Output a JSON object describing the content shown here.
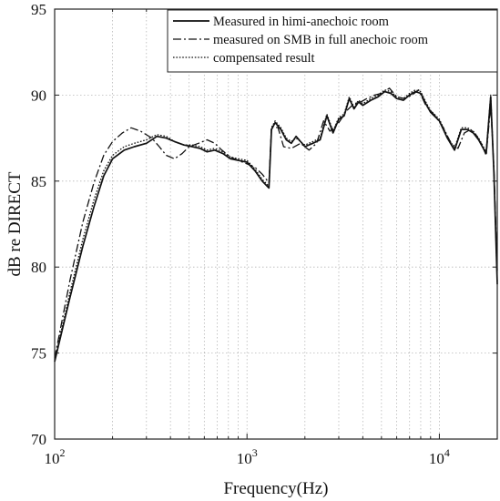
{
  "chart_data": {
    "type": "line",
    "xlabel": "Frequency(Hz)",
    "ylabel": "dB re DIRECT",
    "x_scale": "log",
    "xlim": [
      100,
      20000
    ],
    "ylim": [
      70,
      95
    ],
    "x_ticks": [
      {
        "value": 100,
        "base": "10",
        "exp": "2"
      },
      {
        "value": 1000,
        "base": "10",
        "exp": "3"
      },
      {
        "value": 10000,
        "base": "10",
        "exp": "4"
      }
    ],
    "y_ticks": [
      70,
      75,
      80,
      85,
      90,
      95
    ],
    "grid": "x-major-and-minor, y-major, dotted",
    "legend_position": "top-right",
    "series": [
      {
        "name": "Measured in himi-anechoic room",
        "style": "solid",
        "color": "#111111",
        "points": [
          [
            100,
            74.5
          ],
          [
            120,
            78.2
          ],
          [
            140,
            81.2
          ],
          [
            160,
            83.5
          ],
          [
            180,
            85.3
          ],
          [
            200,
            86.3
          ],
          [
            230,
            86.8
          ],
          [
            260,
            87.0
          ],
          [
            300,
            87.2
          ],
          [
            340,
            87.6
          ],
          [
            380,
            87.5
          ],
          [
            420,
            87.3
          ],
          [
            470,
            87.1
          ],
          [
            520,
            87.0
          ],
          [
            570,
            86.9
          ],
          [
            620,
            86.7
          ],
          [
            680,
            86.8
          ],
          [
            750,
            86.6
          ],
          [
            820,
            86.3
          ],
          [
            900,
            86.2
          ],
          [
            1000,
            86.1
          ],
          [
            1100,
            85.6
          ],
          [
            1200,
            85.0
          ],
          [
            1300,
            84.6
          ],
          [
            1340,
            88.0
          ],
          [
            1400,
            88.4
          ],
          [
            1500,
            88.0
          ],
          [
            1600,
            87.4
          ],
          [
            1700,
            87.2
          ],
          [
            1800,
            87.6
          ],
          [
            2000,
            87.0
          ],
          [
            2200,
            87.2
          ],
          [
            2400,
            87.4
          ],
          [
            2600,
            88.8
          ],
          [
            2800,
            87.8
          ],
          [
            3000,
            88.6
          ],
          [
            3200,
            88.8
          ],
          [
            3400,
            89.8
          ],
          [
            3600,
            89.2
          ],
          [
            3800,
            89.6
          ],
          [
            4000,
            89.4
          ],
          [
            4400,
            89.7
          ],
          [
            4800,
            89.9
          ],
          [
            5200,
            90.2
          ],
          [
            5600,
            90.1
          ],
          [
            6000,
            89.8
          ],
          [
            6500,
            89.7
          ],
          [
            7000,
            90.0
          ],
          [
            7500,
            90.2
          ],
          [
            8000,
            90.1
          ],
          [
            8500,
            89.5
          ],
          [
            9000,
            89.0
          ],
          [
            10000,
            88.5
          ],
          [
            11000,
            87.5
          ],
          [
            12000,
            86.8
          ],
          [
            13000,
            88.0
          ],
          [
            14000,
            88.0
          ],
          [
            15000,
            87.8
          ],
          [
            16000,
            87.4
          ],
          [
            17500,
            86.6
          ],
          [
            18500,
            89.9
          ],
          [
            19200,
            85.5
          ],
          [
            20000,
            79.0
          ]
        ]
      },
      {
        "name": "measured on SMB in full anechoic room",
        "style": "dashdot",
        "color": "#111111",
        "points": [
          [
            100,
            74.7
          ],
          [
            120,
            79.2
          ],
          [
            140,
            82.6
          ],
          [
            160,
            84.9
          ],
          [
            180,
            86.5
          ],
          [
            200,
            87.3
          ],
          [
            225,
            87.8
          ],
          [
            250,
            88.1
          ],
          [
            280,
            87.9
          ],
          [
            320,
            87.5
          ],
          [
            350,
            87.0
          ],
          [
            380,
            86.5
          ],
          [
            420,
            86.3
          ],
          [
            460,
            86.6
          ],
          [
            500,
            87.0
          ],
          [
            560,
            87.2
          ],
          [
            620,
            87.4
          ],
          [
            680,
            87.2
          ],
          [
            740,
            86.8
          ],
          [
            820,
            86.4
          ],
          [
            900,
            86.2
          ],
          [
            1000,
            86.0
          ],
          [
            1100,
            85.8
          ],
          [
            1200,
            85.4
          ],
          [
            1300,
            84.9
          ],
          [
            1340,
            88.2
          ],
          [
            1450,
            88.1
          ],
          [
            1550,
            87.0
          ],
          [
            1700,
            86.9
          ],
          [
            1900,
            87.2
          ],
          [
            2100,
            86.8
          ],
          [
            2300,
            87.2
          ],
          [
            2500,
            88.5
          ],
          [
            2700,
            87.9
          ],
          [
            3000,
            88.4
          ],
          [
            3300,
            89.1
          ],
          [
            3600,
            89.5
          ],
          [
            3900,
            89.6
          ],
          [
            4200,
            89.8
          ],
          [
            4600,
            90.0
          ],
          [
            5000,
            90.1
          ],
          [
            5500,
            90.4
          ],
          [
            6000,
            89.9
          ],
          [
            6600,
            89.8
          ],
          [
            7200,
            90.0
          ],
          [
            7800,
            90.3
          ],
          [
            8500,
            89.4
          ],
          [
            9500,
            88.8
          ],
          [
            10500,
            88.1
          ],
          [
            11500,
            87.2
          ],
          [
            12500,
            86.9
          ],
          [
            13500,
            87.8
          ],
          [
            14500,
            88.0
          ],
          [
            15500,
            87.7
          ],
          [
            16500,
            87.2
          ],
          [
            17500,
            86.5
          ],
          [
            18500,
            89.4
          ],
          [
            19200,
            85.8
          ],
          [
            20000,
            79.8
          ]
        ]
      },
      {
        "name": "compensated result",
        "style": "dotted",
        "color": "#111111",
        "points": [
          [
            100,
            74.6
          ],
          [
            120,
            78.5
          ],
          [
            140,
            81.6
          ],
          [
            160,
            83.9
          ],
          [
            180,
            85.6
          ],
          [
            200,
            86.5
          ],
          [
            230,
            87.0
          ],
          [
            260,
            87.2
          ],
          [
            300,
            87.4
          ],
          [
            340,
            87.7
          ],
          [
            380,
            87.6
          ],
          [
            420,
            87.3
          ],
          [
            470,
            87.1
          ],
          [
            520,
            87.1
          ],
          [
            570,
            87.0
          ],
          [
            620,
            86.8
          ],
          [
            680,
            86.9
          ],
          [
            750,
            86.7
          ],
          [
            820,
            86.4
          ],
          [
            900,
            86.3
          ],
          [
            1000,
            86.2
          ],
          [
            1100,
            85.7
          ],
          [
            1200,
            85.1
          ],
          [
            1300,
            84.7
          ],
          [
            1340,
            88.1
          ],
          [
            1400,
            88.5
          ],
          [
            1500,
            88.1
          ],
          [
            1600,
            87.5
          ],
          [
            1700,
            87.3
          ],
          [
            1800,
            87.5
          ],
          [
            2000,
            87.1
          ],
          [
            2200,
            87.3
          ],
          [
            2400,
            87.5
          ],
          [
            2600,
            88.9
          ],
          [
            2800,
            87.9
          ],
          [
            3000,
            88.7
          ],
          [
            3200,
            88.9
          ],
          [
            3400,
            89.9
          ],
          [
            3600,
            89.3
          ],
          [
            3800,
            89.7
          ],
          [
            4000,
            89.5
          ],
          [
            4400,
            89.8
          ],
          [
            4800,
            90.0
          ],
          [
            5200,
            90.3
          ],
          [
            5600,
            90.2
          ],
          [
            6000,
            89.9
          ],
          [
            6500,
            89.8
          ],
          [
            7000,
            90.1
          ],
          [
            7500,
            90.3
          ],
          [
            8000,
            90.2
          ],
          [
            8500,
            89.6
          ],
          [
            9000,
            89.1
          ],
          [
            10000,
            88.6
          ],
          [
            11000,
            87.6
          ],
          [
            12000,
            86.9
          ],
          [
            13000,
            88.1
          ],
          [
            14000,
            88.1
          ],
          [
            15000,
            87.9
          ],
          [
            16000,
            87.5
          ],
          [
            17500,
            86.7
          ],
          [
            18500,
            90.0
          ],
          [
            19200,
            85.6
          ],
          [
            20000,
            79.1
          ]
        ]
      }
    ]
  }
}
